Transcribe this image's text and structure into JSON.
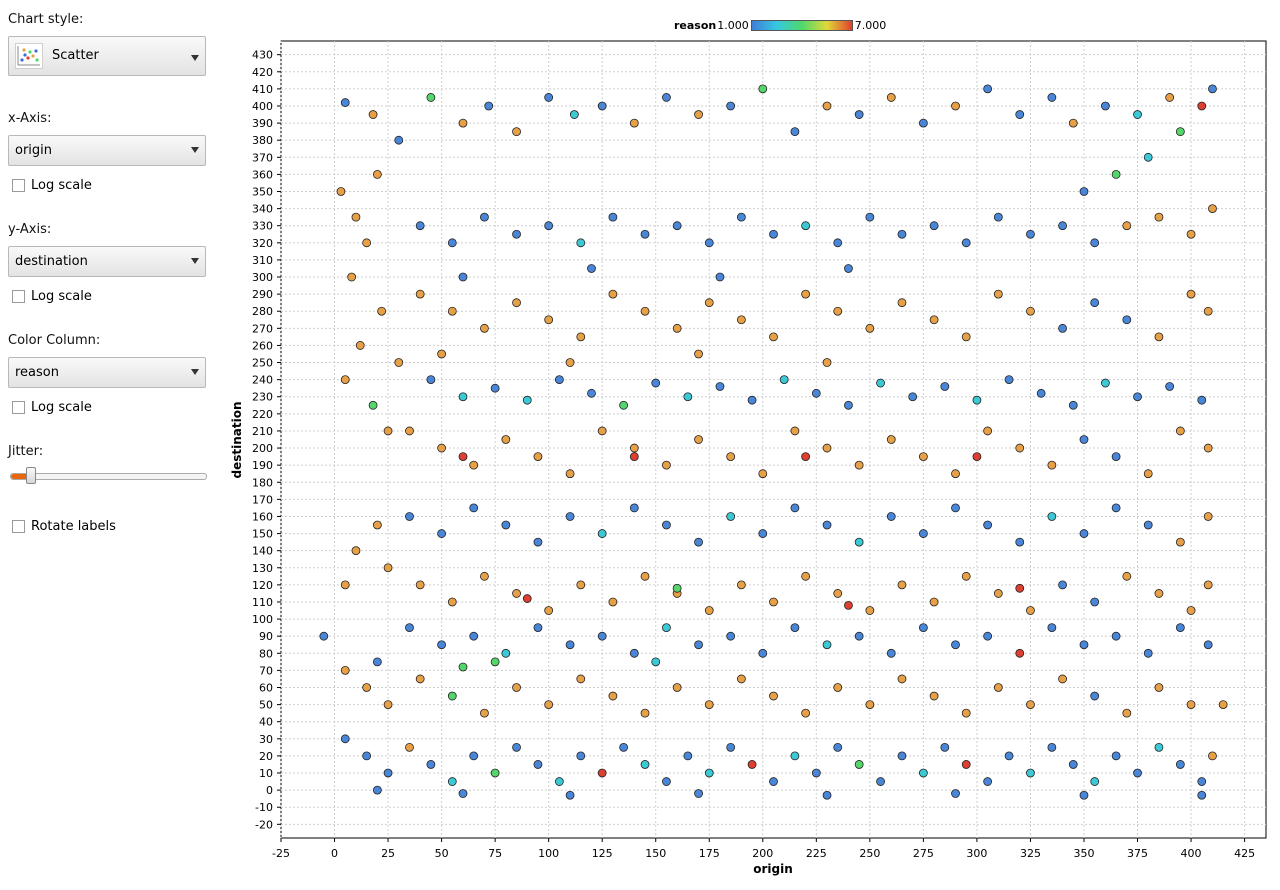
{
  "panel": {
    "chart_style_label": "Chart style:",
    "chart_style_value": "Scatter",
    "x_axis_label": "x-Axis:",
    "x_axis_value": "origin",
    "y_axis_label": "y-Axis:",
    "y_axis_value": "destination",
    "color_column_label": "Color Column:",
    "color_column_value": "reason",
    "log_scale_label": "Log scale",
    "jitter_label": "Jitter:",
    "jitter_fraction": 0.11,
    "rotate_labels_label": "Rotate labels",
    "accent_color": "#e8660c"
  },
  "legend": {
    "title": "reason",
    "min": "1.000",
    "max": "7.000"
  },
  "chart_data": {
    "type": "scatter",
    "xlabel": "origin",
    "ylabel": "destination",
    "xlim": [
      -25,
      435
    ],
    "ylim": [
      -28,
      438
    ],
    "x_ticks": [
      "-25",
      "0",
      "25",
      "50",
      "75",
      "100",
      "125",
      "150",
      "175",
      "200",
      "225",
      "250",
      "275",
      "300",
      "325",
      "350",
      "375",
      "400",
      "425"
    ],
    "y_ticks": [
      "-20",
      "-10",
      "0",
      "10",
      "20",
      "30",
      "40",
      "50",
      "60",
      "70",
      "80",
      "90",
      "100",
      "110",
      "120",
      "130",
      "140",
      "150",
      "160",
      "170",
      "180",
      "190",
      "200",
      "210",
      "220",
      "230",
      "240",
      "250",
      "260",
      "270",
      "280",
      "290",
      "300",
      "310",
      "320",
      "330",
      "340",
      "350",
      "360",
      "370",
      "380",
      "390",
      "400",
      "410",
      "420",
      "430"
    ],
    "grid": true,
    "color_scale": {
      "column": "reason",
      "min": 1,
      "max": 7,
      "colors": [
        "#4a86d8",
        "#3cc9d6",
        "#55d66a",
        "#e0d83c",
        "#dd3f30",
        "#e8a046"
      ]
    },
    "point_style": {
      "radius": 4,
      "stroke": "#222222"
    },
    "points": [
      [
        5,
        402,
        1
      ],
      [
        18,
        395,
        6
      ],
      [
        30,
        380,
        1
      ],
      [
        45,
        405,
        3
      ],
      [
        60,
        390,
        6
      ],
      [
        72,
        400,
        1
      ],
      [
        85,
        385,
        6
      ],
      [
        100,
        405,
        1
      ],
      [
        112,
        395,
        2
      ],
      [
        125,
        400,
        1
      ],
      [
        140,
        390,
        6
      ],
      [
        155,
        405,
        1
      ],
      [
        170,
        395,
        6
      ],
      [
        185,
        400,
        1
      ],
      [
        200,
        410,
        3
      ],
      [
        215,
        385,
        1
      ],
      [
        230,
        400,
        6
      ],
      [
        245,
        395,
        1
      ],
      [
        260,
        405,
        6
      ],
      [
        275,
        390,
        1
      ],
      [
        290,
        400,
        6
      ],
      [
        305,
        410,
        1
      ],
      [
        320,
        395,
        1
      ],
      [
        335,
        405,
        1
      ],
      [
        345,
        390,
        6
      ],
      [
        360,
        400,
        1
      ],
      [
        375,
        395,
        2
      ],
      [
        390,
        405,
        6
      ],
      [
        405,
        400,
        5
      ],
      [
        410,
        410,
        1
      ],
      [
        3,
        350,
        6
      ],
      [
        10,
        335,
        6
      ],
      [
        20,
        360,
        6
      ],
      [
        15,
        320,
        6
      ],
      [
        8,
        300,
        6
      ],
      [
        22,
        280,
        6
      ],
      [
        12,
        260,
        6
      ],
      [
        5,
        240,
        6
      ],
      [
        18,
        225,
        3
      ],
      [
        25,
        210,
        6
      ],
      [
        40,
        330,
        1
      ],
      [
        55,
        320,
        1
      ],
      [
        70,
        335,
        1
      ],
      [
        85,
        325,
        1
      ],
      [
        100,
        330,
        1
      ],
      [
        115,
        320,
        2
      ],
      [
        130,
        335,
        1
      ],
      [
        145,
        325,
        1
      ],
      [
        160,
        330,
        1
      ],
      [
        175,
        320,
        1
      ],
      [
        190,
        335,
        1
      ],
      [
        205,
        325,
        1
      ],
      [
        220,
        330,
        2
      ],
      [
        235,
        320,
        1
      ],
      [
        250,
        335,
        1
      ],
      [
        265,
        325,
        1
      ],
      [
        280,
        330,
        1
      ],
      [
        295,
        320,
        1
      ],
      [
        310,
        335,
        1
      ],
      [
        325,
        325,
        1
      ],
      [
        340,
        330,
        1
      ],
      [
        355,
        320,
        1
      ],
      [
        370,
        330,
        6
      ],
      [
        385,
        335,
        6
      ],
      [
        400,
        325,
        6
      ],
      [
        410,
        340,
        6
      ],
      [
        365,
        360,
        3
      ],
      [
        380,
        370,
        2
      ],
      [
        395,
        385,
        3
      ],
      [
        350,
        350,
        1
      ],
      [
        40,
        290,
        6
      ],
      [
        55,
        280,
        6
      ],
      [
        70,
        270,
        6
      ],
      [
        85,
        285,
        6
      ],
      [
        100,
        275,
        6
      ],
      [
        115,
        265,
        6
      ],
      [
        130,
        290,
        6
      ],
      [
        145,
        280,
        6
      ],
      [
        160,
        270,
        6
      ],
      [
        175,
        285,
        6
      ],
      [
        190,
        275,
        6
      ],
      [
        205,
        265,
        6
      ],
      [
        220,
        290,
        6
      ],
      [
        235,
        280,
        6
      ],
      [
        250,
        270,
        6
      ],
      [
        265,
        285,
        6
      ],
      [
        280,
        275,
        6
      ],
      [
        295,
        265,
        6
      ],
      [
        310,
        290,
        6
      ],
      [
        325,
        280,
        6
      ],
      [
        340,
        270,
        1
      ],
      [
        355,
        285,
        1
      ],
      [
        370,
        275,
        1
      ],
      [
        385,
        265,
        6
      ],
      [
        400,
        290,
        6
      ],
      [
        408,
        280,
        6
      ],
      [
        60,
        300,
        1
      ],
      [
        120,
        305,
        1
      ],
      [
        180,
        300,
        1
      ],
      [
        240,
        305,
        1
      ],
      [
        45,
        240,
        1
      ],
      [
        60,
        230,
        2
      ],
      [
        75,
        235,
        1
      ],
      [
        90,
        228,
        2
      ],
      [
        105,
        240,
        1
      ],
      [
        120,
        232,
        1
      ],
      [
        135,
        225,
        3
      ],
      [
        150,
        238,
        1
      ],
      [
        165,
        230,
        2
      ],
      [
        180,
        236,
        1
      ],
      [
        195,
        228,
        1
      ],
      [
        210,
        240,
        2
      ],
      [
        225,
        232,
        1
      ],
      [
        240,
        225,
        1
      ],
      [
        255,
        238,
        2
      ],
      [
        270,
        230,
        1
      ],
      [
        285,
        236,
        1
      ],
      [
        300,
        228,
        2
      ],
      [
        315,
        240,
        1
      ],
      [
        330,
        232,
        1
      ],
      [
        345,
        225,
        1
      ],
      [
        360,
        238,
        2
      ],
      [
        375,
        230,
        1
      ],
      [
        390,
        236,
        1
      ],
      [
        405,
        228,
        1
      ],
      [
        30,
        250,
        6
      ],
      [
        50,
        255,
        6
      ],
      [
        110,
        250,
        6
      ],
      [
        170,
        255,
        6
      ],
      [
        230,
        250,
        6
      ],
      [
        35,
        210,
        6
      ],
      [
        50,
        200,
        6
      ],
      [
        65,
        190,
        6
      ],
      [
        80,
        205,
        6
      ],
      [
        95,
        195,
        6
      ],
      [
        110,
        185,
        6
      ],
      [
        125,
        210,
        6
      ],
      [
        140,
        200,
        6
      ],
      [
        155,
        190,
        6
      ],
      [
        170,
        205,
        6
      ],
      [
        185,
        195,
        6
      ],
      [
        200,
        185,
        6
      ],
      [
        215,
        210,
        6
      ],
      [
        230,
        200,
        6
      ],
      [
        245,
        190,
        6
      ],
      [
        260,
        205,
        6
      ],
      [
        275,
        195,
        6
      ],
      [
        290,
        185,
        6
      ],
      [
        305,
        210,
        6
      ],
      [
        320,
        200,
        6
      ],
      [
        335,
        190,
        6
      ],
      [
        350,
        205,
        1
      ],
      [
        365,
        195,
        1
      ],
      [
        380,
        185,
        6
      ],
      [
        395,
        210,
        6
      ],
      [
        408,
        200,
        6
      ],
      [
        60,
        195,
        5
      ],
      [
        140,
        195,
        5
      ],
      [
        220,
        195,
        5
      ],
      [
        300,
        195,
        5
      ],
      [
        35,
        160,
        1
      ],
      [
        50,
        150,
        1
      ],
      [
        65,
        165,
        1
      ],
      [
        80,
        155,
        1
      ],
      [
        95,
        145,
        1
      ],
      [
        110,
        160,
        1
      ],
      [
        125,
        150,
        2
      ],
      [
        140,
        165,
        1
      ],
      [
        155,
        155,
        1
      ],
      [
        170,
        145,
        1
      ],
      [
        185,
        160,
        2
      ],
      [
        200,
        150,
        1
      ],
      [
        215,
        165,
        1
      ],
      [
        230,
        155,
        1
      ],
      [
        245,
        145,
        2
      ],
      [
        260,
        160,
        1
      ],
      [
        275,
        150,
        1
      ],
      [
        290,
        165,
        1
      ],
      [
        305,
        155,
        1
      ],
      [
        320,
        145,
        1
      ],
      [
        335,
        160,
        2
      ],
      [
        350,
        150,
        1
      ],
      [
        365,
        165,
        1
      ],
      [
        380,
        155,
        1
      ],
      [
        395,
        145,
        6
      ],
      [
        408,
        160,
        6
      ],
      [
        20,
        155,
        6
      ],
      [
        10,
        140,
        6
      ],
      [
        25,
        130,
        6
      ],
      [
        5,
        120,
        6
      ],
      [
        40,
        120,
        6
      ],
      [
        55,
        110,
        6
      ],
      [
        70,
        125,
        6
      ],
      [
        85,
        115,
        6
      ],
      [
        100,
        105,
        6
      ],
      [
        115,
        120,
        6
      ],
      [
        130,
        110,
        6
      ],
      [
        145,
        125,
        6
      ],
      [
        160,
        115,
        6
      ],
      [
        175,
        105,
        6
      ],
      [
        190,
        120,
        6
      ],
      [
        205,
        110,
        6
      ],
      [
        220,
        125,
        6
      ],
      [
        235,
        115,
        6
      ],
      [
        250,
        105,
        6
      ],
      [
        265,
        120,
        6
      ],
      [
        280,
        110,
        6
      ],
      [
        295,
        125,
        6
      ],
      [
        310,
        115,
        6
      ],
      [
        325,
        105,
        6
      ],
      [
        340,
        120,
        1
      ],
      [
        355,
        110,
        1
      ],
      [
        370,
        125,
        6
      ],
      [
        385,
        115,
        6
      ],
      [
        400,
        105,
        6
      ],
      [
        408,
        120,
        6
      ],
      [
        90,
        112,
        5
      ],
      [
        160,
        118,
        3
      ],
      [
        240,
        108,
        5
      ],
      [
        320,
        118,
        5
      ],
      [
        35,
        95,
        1
      ],
      [
        50,
        85,
        1
      ],
      [
        65,
        90,
        1
      ],
      [
        80,
        80,
        2
      ],
      [
        95,
        95,
        1
      ],
      [
        110,
        85,
        1
      ],
      [
        125,
        90,
        1
      ],
      [
        140,
        80,
        1
      ],
      [
        155,
        95,
        2
      ],
      [
        170,
        85,
        1
      ],
      [
        185,
        90,
        1
      ],
      [
        200,
        80,
        1
      ],
      [
        215,
        95,
        1
      ],
      [
        230,
        85,
        2
      ],
      [
        245,
        90,
        1
      ],
      [
        260,
        80,
        1
      ],
      [
        275,
        95,
        1
      ],
      [
        290,
        85,
        1
      ],
      [
        305,
        90,
        1
      ],
      [
        320,
        80,
        5
      ],
      [
        335,
        95,
        1
      ],
      [
        350,
        85,
        1
      ],
      [
        365,
        90,
        1
      ],
      [
        380,
        80,
        1
      ],
      [
        395,
        95,
        1
      ],
      [
        408,
        85,
        1
      ],
      [
        -5,
        90,
        1
      ],
      [
        20,
        75,
        1
      ],
      [
        75,
        75,
        3
      ],
      [
        150,
        75,
        2
      ],
      [
        5,
        70,
        6
      ],
      [
        15,
        60,
        6
      ],
      [
        25,
        50,
        6
      ],
      [
        40,
        65,
        6
      ],
      [
        55,
        55,
        3
      ],
      [
        70,
        45,
        6
      ],
      [
        85,
        60,
        6
      ],
      [
        100,
        50,
        6
      ],
      [
        115,
        65,
        6
      ],
      [
        130,
        55,
        6
      ],
      [
        145,
        45,
        6
      ],
      [
        160,
        60,
        6
      ],
      [
        175,
        50,
        6
      ],
      [
        190,
        65,
        6
      ],
      [
        205,
        55,
        6
      ],
      [
        220,
        45,
        6
      ],
      [
        235,
        60,
        6
      ],
      [
        250,
        50,
        6
      ],
      [
        265,
        65,
        6
      ],
      [
        280,
        55,
        6
      ],
      [
        295,
        45,
        6
      ],
      [
        310,
        60,
        6
      ],
      [
        325,
        50,
        6
      ],
      [
        340,
        65,
        6
      ],
      [
        355,
        55,
        1
      ],
      [
        370,
        45,
        6
      ],
      [
        385,
        60,
        6
      ],
      [
        400,
        50,
        6
      ],
      [
        415,
        50,
        6
      ],
      [
        60,
        72,
        3
      ],
      [
        5,
        30,
        1
      ],
      [
        15,
        20,
        1
      ],
      [
        25,
        10,
        1
      ],
      [
        35,
        25,
        6
      ],
      [
        45,
        15,
        1
      ],
      [
        55,
        5,
        2
      ],
      [
        65,
        20,
        1
      ],
      [
        75,
        10,
        3
      ],
      [
        85,
        25,
        1
      ],
      [
        95,
        15,
        1
      ],
      [
        105,
        5,
        2
      ],
      [
        115,
        20,
        1
      ],
      [
        125,
        10,
        5
      ],
      [
        135,
        25,
        1
      ],
      [
        145,
        15,
        2
      ],
      [
        155,
        5,
        1
      ],
      [
        165,
        20,
        1
      ],
      [
        175,
        10,
        2
      ],
      [
        185,
        25,
        1
      ],
      [
        195,
        15,
        5
      ],
      [
        205,
        5,
        1
      ],
      [
        215,
        20,
        2
      ],
      [
        225,
        10,
        1
      ],
      [
        235,
        25,
        1
      ],
      [
        245,
        15,
        3
      ],
      [
        255,
        5,
        1
      ],
      [
        265,
        20,
        1
      ],
      [
        275,
        10,
        2
      ],
      [
        285,
        25,
        1
      ],
      [
        295,
        15,
        5
      ],
      [
        305,
        5,
        1
      ],
      [
        315,
        20,
        1
      ],
      [
        325,
        10,
        2
      ],
      [
        335,
        25,
        1
      ],
      [
        345,
        15,
        1
      ],
      [
        355,
        5,
        2
      ],
      [
        365,
        20,
        1
      ],
      [
        375,
        10,
        1
      ],
      [
        385,
        25,
        2
      ],
      [
        395,
        15,
        1
      ],
      [
        405,
        5,
        1
      ],
      [
        410,
        20,
        6
      ],
      [
        20,
        0,
        1
      ],
      [
        60,
        -2,
        1
      ],
      [
        110,
        -3,
        1
      ],
      [
        170,
        -2,
        1
      ],
      [
        230,
        -3,
        1
      ],
      [
        290,
        -2,
        1
      ],
      [
        350,
        -3,
        1
      ],
      [
        405,
        -3,
        1
      ]
    ]
  }
}
